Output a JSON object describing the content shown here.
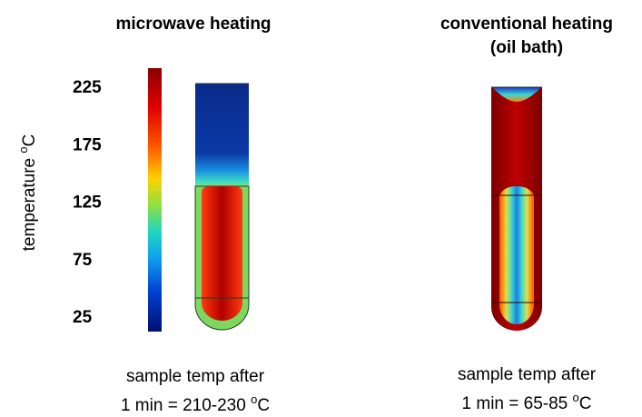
{
  "panels": [
    {
      "title": [
        "microwave heating"
      ],
      "caption": [
        "sample temp after",
        {
          "text": "1 min = 210-230 ",
          "sup": "o",
          "unit": "C"
        }
      ]
    },
    {
      "title": [
        "conventional heating",
        "(oil bath)"
      ],
      "caption": [
        "sample temp after",
        {
          "text": "1 min = 65-85 ",
          "sup": "o",
          "unit": "C"
        }
      ]
    }
  ],
  "colorbar": {
    "label": {
      "text": "temperature ",
      "sup": "o",
      "unit": "C"
    },
    "ticks": [
      225,
      175,
      125,
      75,
      25
    ]
  }
}
